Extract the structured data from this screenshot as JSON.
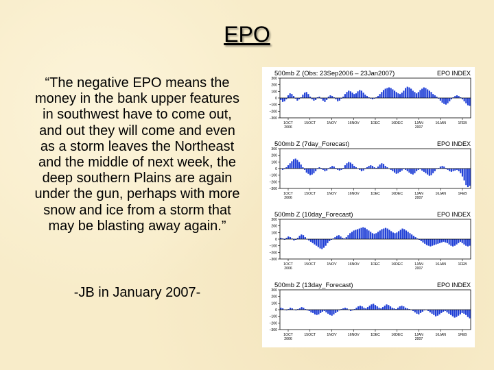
{
  "slide": {
    "title": "EPO",
    "quote": "“The negative EPO means the money in the bank upper features in southwest have to come out, and out they will come and even as a storm leaves the Northeast and the middle of next week, the deep southern Plains are again under the gun, perhaps with more snow and ice from a storm that may be blasting away again.”",
    "attribution": "-JB in January 2007-"
  },
  "colors": {
    "background": "#f8ecc9",
    "bars": "#1f3fd6",
    "text": "#000000"
  },
  "chart_data": [
    {
      "type": "bar",
      "title": "500mb Z (Obs: 23Sep2006 – 23Jan2007)",
      "index_label": "EPO INDEX",
      "x_tick_labels": [
        "1OCT\n2006",
        "15OCT",
        "1NOV",
        "16NOV",
        "1DEC",
        "16DEC",
        "1JAN\n2007",
        "16JAN",
        "1FEB"
      ],
      "y_ticks": [
        300,
        200,
        100,
        0,
        -100,
        -200,
        -300
      ],
      "ylim": [
        -300,
        300
      ],
      "values": [
        -30,
        -60,
        -50,
        -20,
        40,
        70,
        60,
        30,
        -10,
        -40,
        -20,
        10,
        50,
        80,
        90,
        60,
        20,
        -20,
        -40,
        -30,
        10,
        20,
        -10,
        -40,
        -60,
        -30,
        20,
        40,
        30,
        10,
        -20,
        -50,
        -40,
        -10,
        20,
        60,
        90,
        110,
        100,
        80,
        60,
        70,
        100,
        120,
        110,
        80,
        50,
        30,
        10,
        -10,
        -20,
        -10,
        10,
        30,
        60,
        90,
        120,
        140,
        150,
        160,
        150,
        130,
        110,
        90,
        70,
        60,
        80,
        110,
        150,
        170,
        160,
        140,
        110,
        90,
        70,
        90,
        120,
        140,
        160,
        150,
        130,
        110,
        90,
        60,
        40,
        20,
        -10,
        -40,
        -70,
        -90,
        -100,
        -80,
        -50,
        -20,
        10,
        30,
        40,
        30,
        10,
        -20,
        -50,
        -80,
        -110,
        -120
      ]
    },
    {
      "type": "bar",
      "title": "500mb Z (7day_Forecast)",
      "index_label": "EPO INDEX",
      "x_tick_labels": [
        "1OCT\n2006",
        "15OCT",
        "1NOV",
        "16NOV",
        "1DEC",
        "16DEC",
        "1JAN\n2007",
        "16JAN",
        "1FEB"
      ],
      "y_ticks": [
        300,
        200,
        100,
        0,
        -100,
        -200,
        -300
      ],
      "ylim": [
        -300,
        300
      ],
      "values": [
        0,
        -20,
        -10,
        20,
        50,
        80,
        110,
        140,
        150,
        130,
        100,
        60,
        20,
        -20,
        -60,
        -80,
        -100,
        -90,
        -70,
        -40,
        -10,
        20,
        10,
        -20,
        -40,
        -30,
        -10,
        20,
        40,
        30,
        10,
        -20,
        -30,
        -20,
        10,
        50,
        80,
        100,
        90,
        70,
        40,
        20,
        0,
        -20,
        -40,
        -30,
        -10,
        20,
        40,
        50,
        40,
        20,
        10,
        30,
        60,
        80,
        70,
        40,
        20,
        0,
        -20,
        -40,
        -60,
        -80,
        -70,
        -50,
        -30,
        -10,
        -20,
        -40,
        -60,
        -80,
        -90,
        -70,
        -40,
        -20,
        -10,
        -30,
        -50,
        -70,
        -90,
        -110,
        -100,
        -70,
        -40,
        -10,
        10,
        30,
        40,
        30,
        10,
        -20,
        -40,
        -50,
        -40,
        -30,
        -20,
        -40,
        -70,
        -120,
        -180,
        -250,
        -280,
        -260
      ]
    },
    {
      "type": "bar",
      "title": "500mb Z (10day_Forecast)",
      "index_label": "EPO INDEX",
      "x_tick_labels": [
        "1OCT\n2006",
        "15OCT",
        "1NOV",
        "16NOV",
        "1DEC",
        "16DEC",
        "1JAN\n2007",
        "16JAN",
        "1FEB"
      ],
      "y_ticks": [
        300,
        200,
        100,
        0,
        -100,
        -200,
        -300
      ],
      "ylim": [
        -300,
        300
      ],
      "values": [
        20,
        10,
        -10,
        20,
        40,
        30,
        10,
        -20,
        -10,
        20,
        50,
        70,
        60,
        30,
        0,
        -20,
        -40,
        -60,
        -80,
        -100,
        -120,
        -140,
        -150,
        -130,
        -100,
        -60,
        -30,
        -10,
        10,
        30,
        50,
        60,
        40,
        20,
        10,
        30,
        60,
        90,
        110,
        130,
        140,
        150,
        160,
        170,
        180,
        170,
        150,
        130,
        110,
        90,
        80,
        90,
        110,
        130,
        150,
        160,
        170,
        160,
        140,
        120,
        100,
        90,
        100,
        120,
        140,
        160,
        150,
        130,
        110,
        90,
        70,
        50,
        30,
        10,
        -10,
        -30,
        -50,
        -70,
        -90,
        -100,
        -110,
        -100,
        -90,
        -80,
        -70,
        -60,
        -50,
        -40,
        -50,
        -60,
        -80,
        -100,
        -110,
        -100,
        -80,
        -60,
        -40,
        -60,
        -80,
        -100,
        -110,
        -100
      ]
    },
    {
      "type": "bar",
      "title": "500mb Z (13day_Forecast)",
      "index_label": "EPO INDEX",
      "x_tick_labels": [
        "1OCT\n2006",
        "15OCT",
        "1NOV",
        "16NOV",
        "1DEC",
        "16DEC",
        "1JAN\n2007",
        "16JAN",
        "1FEB"
      ],
      "y_ticks": [
        300,
        200,
        100,
        0,
        -100,
        -200,
        -300
      ],
      "ylim": [
        -300,
        300
      ],
      "values": [
        30,
        20,
        0,
        -10,
        10,
        30,
        20,
        0,
        -10,
        10,
        20,
        40,
        30,
        10,
        -10,
        -20,
        -40,
        -50,
        -70,
        -80,
        -70,
        -50,
        -30,
        -20,
        -40,
        -60,
        -80,
        -90,
        -70,
        -50,
        -30,
        -10,
        10,
        20,
        30,
        20,
        0,
        -20,
        -10,
        10,
        30,
        50,
        60,
        50,
        30,
        20,
        40,
        60,
        80,
        90,
        70,
        50,
        30,
        20,
        40,
        60,
        80,
        70,
        50,
        30,
        20,
        10,
        30,
        50,
        60,
        50,
        30,
        20,
        10,
        0,
        -20,
        -40,
        -60,
        -70,
        -50,
        -30,
        -10,
        0,
        -20,
        -40,
        -60,
        -80,
        -100,
        -90,
        -70,
        -50,
        -30,
        -20,
        -40,
        -60,
        -80,
        -100,
        -120,
        -110,
        -90,
        -70,
        -50,
        -60,
        -80,
        -110,
        -130
      ]
    }
  ]
}
